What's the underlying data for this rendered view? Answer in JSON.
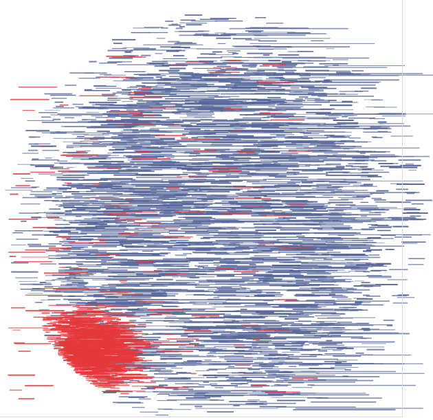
{
  "figure": {
    "kind": "dense node-label network",
    "background": "#ffffff",
    "colors": {
      "primary_nodes": "#56679a",
      "highlight_nodes": "#e5383b",
      "frame": "#d9d9d9"
    },
    "groups": [
      {
        "name_visible": false,
        "color_key": "primary_nodes",
        "share": 0.86,
        "region": "whole-cloud"
      },
      {
        "name_visible": false,
        "color_key": "highlight_nodes",
        "share": 0.14,
        "region": "lower-left"
      }
    ],
    "note_visible_text": false
  }
}
